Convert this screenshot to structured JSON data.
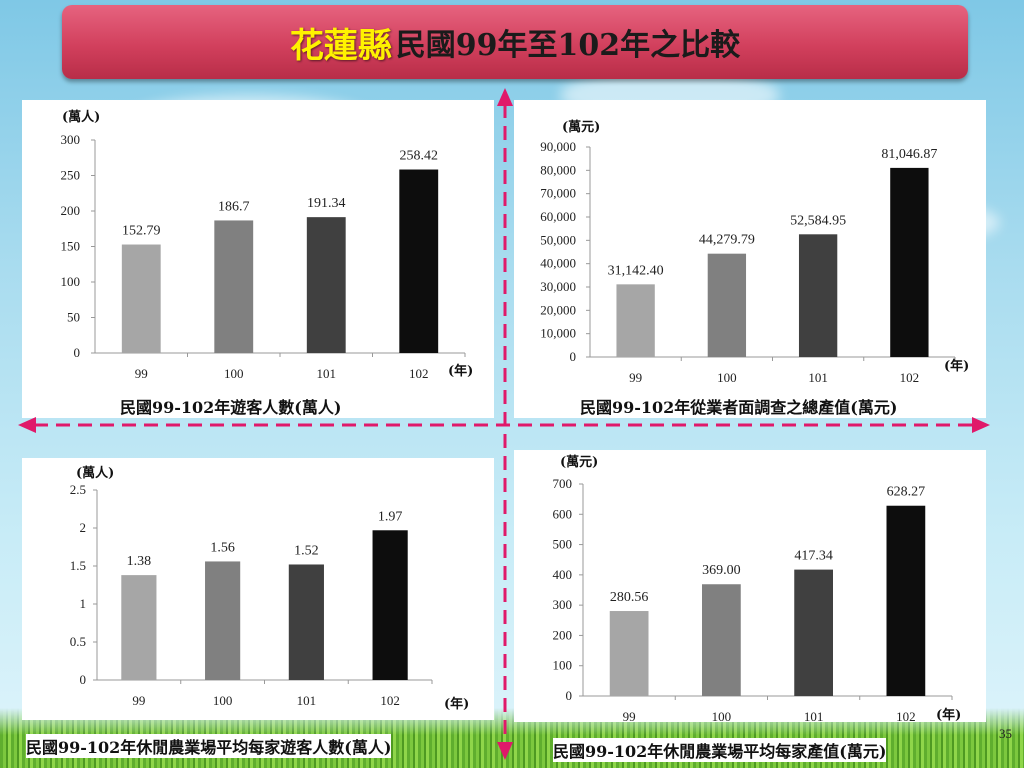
{
  "title": {
    "highlight": "花蓮縣",
    "rest": "民國99年至102年之比較"
  },
  "page_number": "35",
  "colors": {
    "bars": [
      "#a6a6a6",
      "#808080",
      "#404040",
      "#0d0d0d"
    ],
    "arrow": "#e0196a",
    "banner": "#d2405d",
    "highlight": "#fff200"
  },
  "chart_data": [
    {
      "type": "bar",
      "unit": "(萬人)",
      "x_unit": "(年)",
      "caption": "民國99-102年遊客人數(萬人)",
      "categories": [
        "99",
        "100",
        "101",
        "102"
      ],
      "values": [
        152.79,
        186.7,
        191.34,
        258.42
      ],
      "value_labels": [
        "152.79",
        "186.7",
        "191.34",
        "258.42"
      ],
      "ylim": [
        0,
        300
      ],
      "ticks": [
        "0",
        "50",
        "100",
        "150",
        "200",
        "250",
        "300"
      ]
    },
    {
      "type": "bar",
      "unit": "(萬元)",
      "x_unit": "(年)",
      "caption": "民國99-102年從業者面調查之總產值(萬元)",
      "categories": [
        "99",
        "100",
        "101",
        "102"
      ],
      "values": [
        31142.4,
        44279.79,
        52584.95,
        81046.87
      ],
      "value_labels": [
        "31,142.40",
        "44,279.79",
        "52,584.95",
        "81,046.87"
      ],
      "ylim": [
        0,
        90000
      ],
      "ticks": [
        "0",
        "10,000",
        "20,000",
        "30,000",
        "40,000",
        "50,000",
        "60,000",
        "70,000",
        "80,000",
        "90,000"
      ]
    },
    {
      "type": "bar",
      "unit": "(萬人)",
      "x_unit": "(年)",
      "caption": "民國99-102年休閒農業場平均每家遊客人數(萬人)",
      "categories": [
        "99",
        "100",
        "101",
        "102"
      ],
      "values": [
        1.38,
        1.56,
        1.52,
        1.97
      ],
      "value_labels": [
        "1.38",
        "1.56",
        "1.52",
        "1.97"
      ],
      "ylim": [
        0,
        2.5
      ],
      "ticks": [
        "0",
        "0.5",
        "1",
        "1.5",
        "2",
        "2.5"
      ]
    },
    {
      "type": "bar",
      "unit": "(萬元)",
      "x_unit": "(年)",
      "caption": "民國99-102年休閒農業場平均每家產值(萬元)",
      "categories": [
        "99",
        "100",
        "101",
        "102"
      ],
      "values": [
        280.56,
        369.0,
        417.34,
        628.27
      ],
      "value_labels": [
        "280.56",
        "369.00",
        "417.34",
        "628.27"
      ],
      "ylim": [
        0,
        700
      ],
      "ticks": [
        "0",
        "100",
        "200",
        "300",
        "400",
        "500",
        "600",
        "700"
      ]
    }
  ]
}
